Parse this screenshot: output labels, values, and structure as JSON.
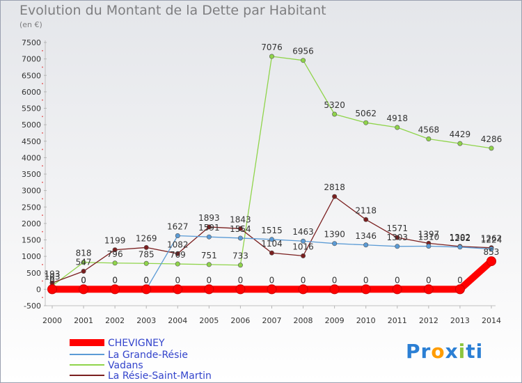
{
  "chart_data": {
    "type": "line",
    "title": "Evolution du Montant de la Dette par Habitant",
    "subtitle": "(en €)",
    "x": [
      "2000",
      "2001",
      "2002",
      "2003",
      "2004",
      "2005",
      "2006",
      "2007",
      "2008",
      "2009",
      "2010",
      "2011",
      "2012",
      "2013",
      "2014"
    ],
    "ylim": [
      -500,
      7500
    ],
    "yticks": [
      -500,
      0,
      500,
      1000,
      1500,
      2000,
      2500,
      3000,
      3500,
      4000,
      4500,
      5000,
      5500,
      6000,
      6500,
      7000,
      7500
    ],
    "grid": false,
    "legend_position": "bottom-left",
    "series": [
      {
        "name": "CHEVIGNEY",
        "color": "#ff0000",
        "values": [
          0,
          0,
          0,
          0,
          0,
          0,
          0,
          0,
          0,
          0,
          0,
          0,
          0,
          0,
          853
        ],
        "labels": [
          "0",
          "0",
          "0",
          "0",
          "0",
          "0",
          "0",
          "0",
          "0",
          "0",
          "0",
          "0",
          "0",
          "0",
          "853"
        ]
      },
      {
        "name": "La Grande-Résie",
        "color": "#5b9bd5",
        "values": [
          0,
          0,
          0,
          0,
          1627,
          1591,
          1554,
          1515,
          1463,
          1390,
          1346,
          1303,
          1310,
          1282,
          1224
        ],
        "labels": [
          "0",
          "0",
          "0",
          "0",
          "1627",
          "1591",
          "1554",
          "1515",
          "1463",
          "1390",
          "1346",
          "1303",
          "1310",
          "1282",
          "1224"
        ]
      },
      {
        "name": "Vadans",
        "color": "#8fd44a",
        "values": [
          103,
          818,
          796,
          785,
          769,
          751,
          733,
          7076,
          6956,
          5320,
          5062,
          4918,
          4568,
          4429,
          4286
        ],
        "labels": [
          "103",
          "818",
          "796",
          "785",
          "769",
          "751",
          "733",
          "7076",
          "6956",
          "5320",
          "5062",
          "4918",
          "4568",
          "4429",
          "4286"
        ]
      },
      {
        "name": "La Résie-Saint-Martin",
        "color": "#7a1f1f",
        "values": [
          193,
          547,
          1199,
          1269,
          1082,
          1893,
          1843,
          1104,
          1016,
          2818,
          2118,
          1571,
          1397,
          1302,
          1262
        ],
        "labels": [
          "193",
          "547",
          "1199",
          "1269",
          "1082",
          "1893",
          "1843",
          "1104",
          "1016",
          "2818",
          "2118",
          "1571",
          "1397",
          "1302",
          "1262"
        ]
      }
    ]
  },
  "logo": {
    "parts": [
      "Pr",
      "o",
      "x",
      "i",
      "ti"
    ],
    "colors": [
      "#2b7fd4",
      "#ff9c00",
      "#2b7fd4",
      "#8cc63f",
      "#2b7fd4"
    ]
  }
}
